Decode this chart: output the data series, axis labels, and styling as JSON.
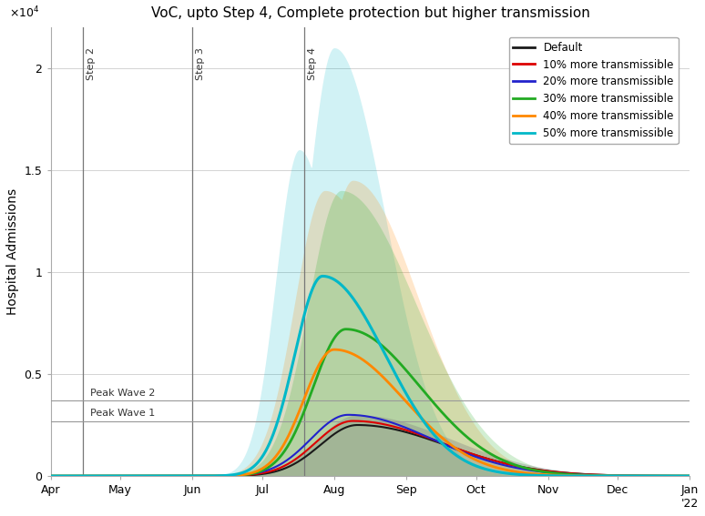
{
  "title": "VoC, upto Step 4, Complete protection but higher transmission",
  "ylabel": "Hospital Admissions",
  "ylim": [
    0,
    22000
  ],
  "yticks": [
    0,
    5000,
    10000,
    15000,
    20000
  ],
  "ytick_labels": [
    "0",
    "0.5",
    "1",
    "1.5",
    "2"
  ],
  "peak_wave2": 3700,
  "peak_wave1": 2700,
  "step2_t": 14,
  "step3_t": 61,
  "step4_t": 109,
  "colors": {
    "default": "#1a1a1a",
    "10pct": "#dd0000",
    "20pct": "#2222cc",
    "30pct": "#22aa22",
    "40pct": "#ff8800",
    "50pct": "#00b8c8"
  },
  "legend_labels": [
    "Default",
    "10% more transmissible",
    "20% more transmissible",
    "30% more transmissible",
    "40% more transmissible",
    "50% more transmissible"
  ],
  "month_ticks": [
    0,
    30,
    61,
    91,
    122,
    153,
    183,
    214,
    244,
    275
  ],
  "month_labels": [
    "Apr",
    "May",
    "Jun",
    "Jul",
    "Aug",
    "Sep",
    "Oct",
    "Nov",
    "Dec",
    "Jan\n'22"
  ]
}
